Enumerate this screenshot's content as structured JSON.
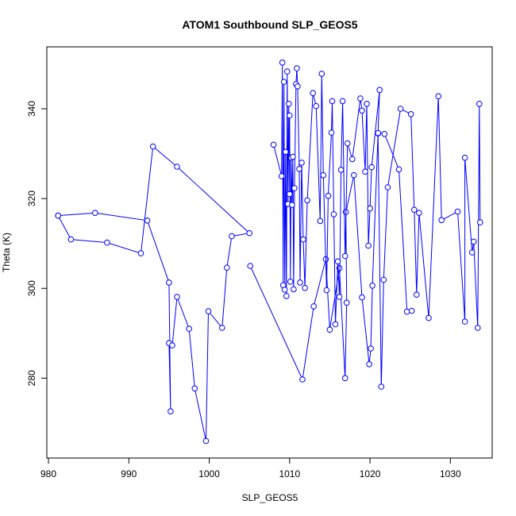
{
  "chart_data": {
    "type": "line",
    "title": "ATOM1 Southbound SLP_GEOS5",
    "xlabel": "SLP_GEOS5",
    "ylabel": "Theta (K)",
    "xlim": [
      979.8,
      1035.2
    ],
    "ylim": [
      262.2,
      353.8
    ],
    "x_ticks": [
      980,
      990,
      1000,
      1010,
      1020,
      1030
    ],
    "y_ticks": [
      280,
      300,
      320,
      340
    ],
    "grid": false,
    "legend": "none",
    "line_color": "#0000ff",
    "marker": "open-circle",
    "series": [
      {
        "points": [
          [
            981.2,
            316.2
          ],
          [
            985.8,
            316.8
          ],
          [
            992.3,
            315.1
          ],
          [
            995.0,
            301.3
          ],
          [
            995.2,
            272.6
          ],
          [
            995.0,
            287.8
          ],
          [
            995.4,
            287.3
          ],
          [
            996.0,
            298.1
          ],
          [
            997.5,
            291.0
          ],
          [
            998.2,
            277.7
          ],
          [
            999.6,
            266.0
          ],
          [
            999.9,
            294.9
          ],
          [
            1001.6,
            291.2
          ],
          [
            1002.2,
            304.6
          ],
          [
            1002.8,
            311.6
          ],
          [
            1005.0,
            312.3
          ],
          [
            996.0,
            327.1
          ],
          [
            993.0,
            331.6
          ],
          [
            991.5,
            307.8
          ],
          [
            987.3,
            310.2
          ],
          [
            982.8,
            310.9
          ],
          [
            981.2,
            316.2
          ]
        ]
      },
      {
        "points": [
          [
            1005.1,
            305.0
          ],
          [
            1011.6,
            279.7
          ],
          [
            1013.0,
            296.0
          ],
          [
            1014.5,
            306.5
          ],
          [
            1015.0,
            290.8
          ],
          [
            1016.2,
            304.5
          ],
          [
            1016.9,
            280.0
          ],
          [
            1017.1,
            296.8
          ],
          [
            1017.0,
            317.0
          ],
          [
            1018.0,
            325.2
          ],
          [
            1019.0,
            298.0
          ],
          [
            1019.9,
            283.1
          ],
          [
            1020.1,
            286.6
          ],
          [
            1020.3,
            300.6
          ],
          [
            1021.0,
            334.5
          ],
          [
            1021.4,
            278.1
          ],
          [
            1021.7,
            301.9
          ],
          [
            1022.2,
            322.5
          ],
          [
            1023.8,
            340.0
          ],
          [
            1025.1,
            338.8
          ],
          [
            1025.5,
            317.5
          ],
          [
            1025.8,
            298.6
          ],
          [
            1026.1,
            316.8
          ],
          [
            1027.3,
            293.4
          ],
          [
            1028.5,
            342.8
          ],
          [
            1028.9,
            315.2
          ],
          [
            1030.9,
            317.1
          ],
          [
            1031.8,
            292.6
          ],
          [
            1031.8,
            329.1
          ],
          [
            1032.7,
            308.0
          ],
          [
            1032.9,
            310.4
          ],
          [
            1033.4,
            291.2
          ],
          [
            1033.6,
            341.1
          ],
          [
            1033.7,
            314.7
          ]
        ]
      },
      {
        "points": [
          [
            1008.0,
            332.0
          ],
          [
            1009.0,
            325.0
          ],
          [
            1009.1,
            350.3
          ],
          [
            1009.2,
            300.7
          ],
          [
            1009.3,
            346.0
          ],
          [
            1009.4,
            299.7
          ],
          [
            1009.5,
            330.4
          ],
          [
            1009.6,
            298.3
          ],
          [
            1009.7,
            348.3
          ],
          [
            1009.8,
            318.8
          ],
          [
            1009.9,
            341.1
          ],
          [
            1010.0,
            321.0
          ],
          [
            1010.0,
            338.5
          ],
          [
            1010.1,
            301.5
          ],
          [
            1010.2,
            329.1
          ],
          [
            1010.3,
            318.6
          ],
          [
            1010.4,
            329.3
          ],
          [
            1010.5,
            299.8
          ],
          [
            1010.6,
            322.3
          ],
          [
            1010.8,
            345.5
          ],
          [
            1010.9,
            349.0
          ],
          [
            1011.0,
            345.0
          ],
          [
            1011.2,
            326.6
          ],
          [
            1011.3,
            301.3
          ],
          [
            1011.5,
            328.0
          ],
          [
            1011.7,
            310.9
          ],
          [
            1011.9,
            300.1
          ],
          [
            1012.2,
            319.6
          ],
          [
            1012.9,
            343.5
          ],
          [
            1013.3,
            340.6
          ],
          [
            1013.8,
            315.0
          ],
          [
            1014.0,
            347.8
          ],
          [
            1014.2,
            325.2
          ],
          [
            1014.6,
            299.6
          ],
          [
            1014.8,
            320.6
          ],
          [
            1015.2,
            334.7
          ],
          [
            1015.3,
            341.7
          ],
          [
            1015.5,
            316.5
          ],
          [
            1015.7,
            292.0
          ],
          [
            1016.0,
            306.0
          ],
          [
            1016.2,
            298.1
          ],
          [
            1016.4,
            326.4
          ],
          [
            1016.6,
            341.7
          ],
          [
            1016.9,
            307.2
          ],
          [
            1017.2,
            332.3
          ],
          [
            1017.8,
            328.8
          ],
          [
            1018.8,
            342.3
          ],
          [
            1019.0,
            339.6
          ],
          [
            1019.4,
            326.0
          ],
          [
            1019.6,
            341.1
          ],
          [
            1019.8,
            309.5
          ],
          [
            1020.0,
            317.8
          ],
          [
            1020.2,
            327.0
          ],
          [
            1021.2,
            344.2
          ],
          [
            1021.0,
            334.6
          ],
          [
            1021.8,
            334.4
          ],
          [
            1023.6,
            326.5
          ],
          [
            1024.6,
            294.8
          ],
          [
            1025.2,
            295.0
          ]
        ]
      }
    ]
  }
}
